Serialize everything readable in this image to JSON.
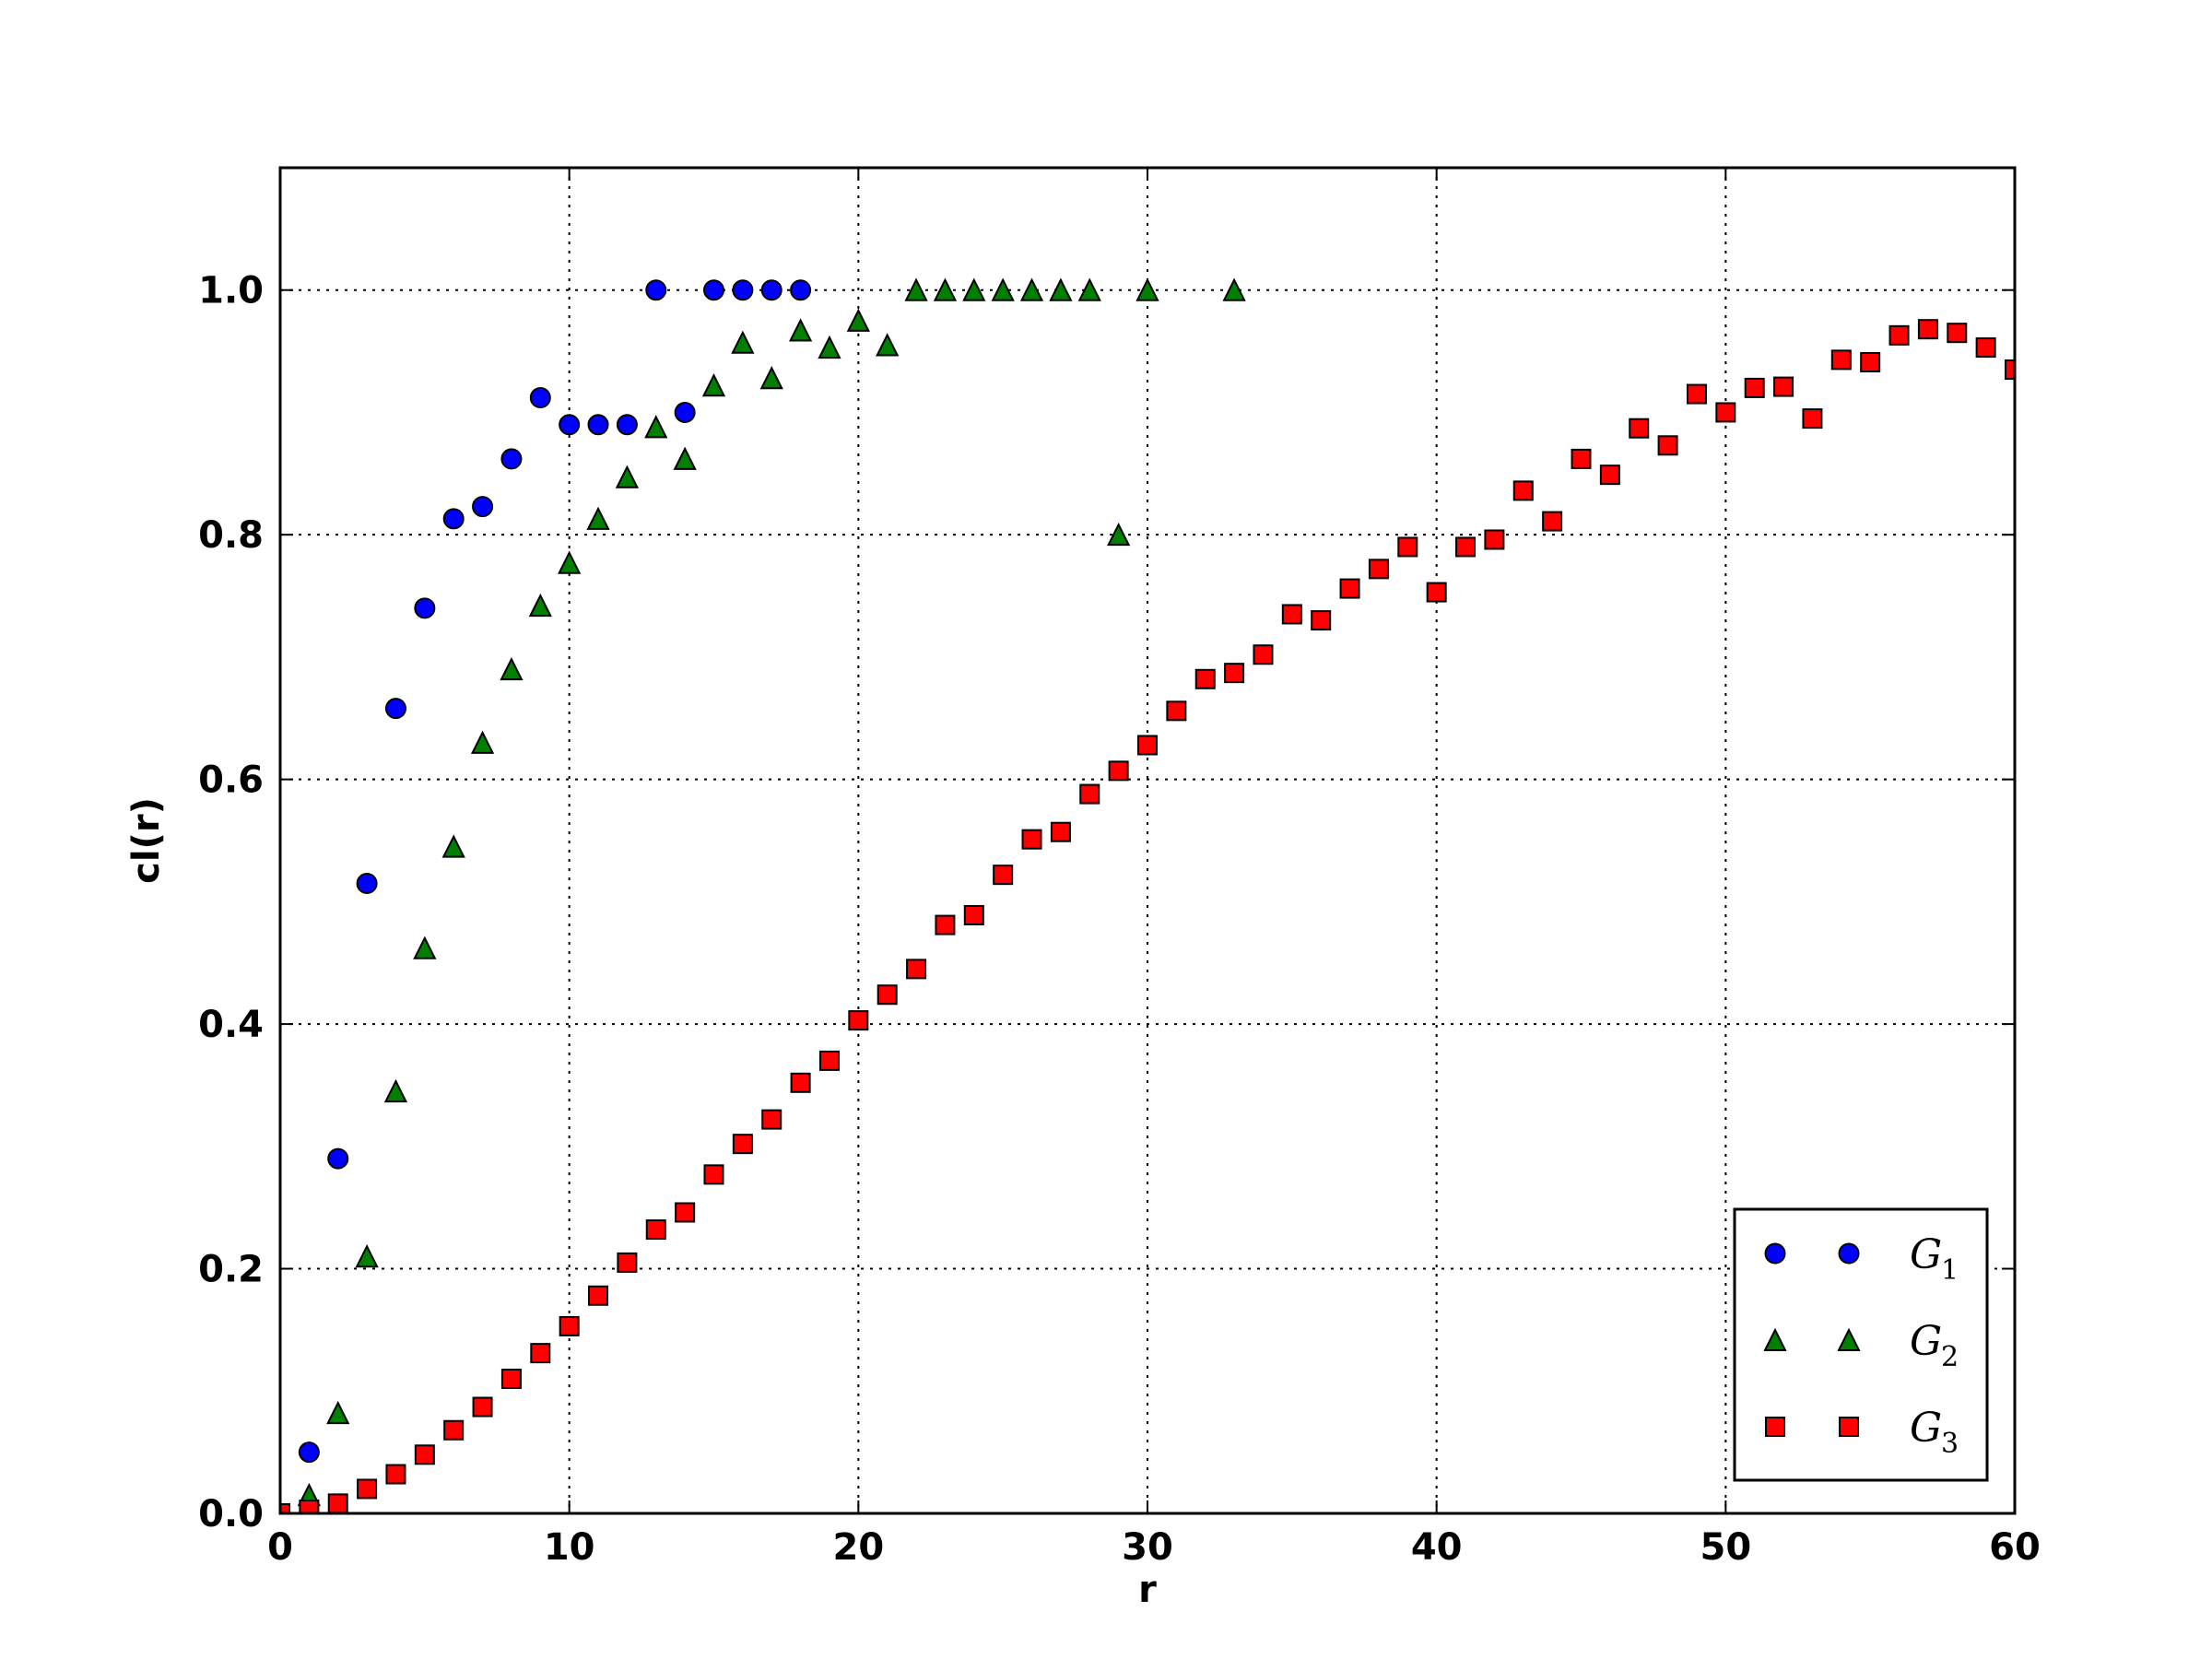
{
  "chart_data": {
    "type": "scatter",
    "xlabel": "r",
    "ylabel": "cl(r)",
    "xlim": [
      0,
      60
    ],
    "ylim": [
      0,
      1.1
    ],
    "xticks": [
      "0",
      "10",
      "20",
      "30",
      "40",
      "50",
      "60"
    ],
    "yticks": [
      "0.0",
      "0.2",
      "0.4",
      "0.6",
      "0.8",
      "1.0"
    ],
    "grid": true,
    "legend_position": "bottom-right",
    "series": [
      {
        "name": "G1",
        "legend_letter": "G",
        "legend_subscript": "1",
        "marker": "circle",
        "color": "#0000ff",
        "x": [
          1,
          2,
          3,
          4,
          5,
          6,
          7,
          8,
          9,
          10,
          11,
          12,
          13,
          14,
          15,
          16,
          17,
          18
        ],
        "y": [
          0.05,
          0.29,
          0.515,
          0.658,
          0.74,
          0.813,
          0.823,
          0.862,
          0.912,
          0.89,
          0.89,
          0.89,
          1.0,
          0.9,
          1.0,
          1.0,
          1.0,
          1.0
        ]
      },
      {
        "name": "G2",
        "legend_letter": "G",
        "legend_subscript": "2",
        "marker": "triangle",
        "color": "#007f00",
        "x": [
          1,
          2,
          3,
          4,
          5,
          6,
          7,
          8,
          9,
          10,
          11,
          12,
          13,
          14,
          15,
          16,
          17,
          18,
          19,
          20,
          21,
          22,
          23,
          24,
          25,
          26,
          27,
          28,
          29,
          30,
          33
        ],
        "y": [
          0.015,
          0.082,
          0.21,
          0.345,
          0.462,
          0.545,
          0.63,
          0.69,
          0.742,
          0.777,
          0.813,
          0.847,
          0.888,
          0.862,
          0.922,
          0.957,
          0.928,
          0.967,
          0.953,
          0.975,
          0.955,
          1.0,
          1.0,
          1.0,
          1.0,
          1.0,
          1.0,
          1.0,
          0.8,
          1.0,
          1.0
        ]
      },
      {
        "name": "G3",
        "legend_letter": "G",
        "legend_subscript": "3",
        "marker": "square",
        "color": "#ff0000",
        "x": [
          0,
          1,
          2,
          3,
          4,
          5,
          6,
          7,
          8,
          9,
          10,
          11,
          12,
          13,
          14,
          15,
          16,
          17,
          18,
          19,
          20,
          21,
          22,
          23,
          24,
          25,
          26,
          27,
          28,
          29,
          30,
          31,
          32,
          33,
          34,
          35,
          36,
          37,
          38,
          39,
          40,
          41,
          42,
          43,
          44,
          45,
          46,
          47,
          48,
          49,
          50,
          51,
          52,
          53,
          54,
          55,
          56,
          57,
          58,
          59,
          60
        ],
        "y": [
          0.0,
          0.003,
          0.008,
          0.02,
          0.032,
          0.048,
          0.068,
          0.087,
          0.11,
          0.131,
          0.153,
          0.178,
          0.205,
          0.232,
          0.246,
          0.277,
          0.302,
          0.322,
          0.352,
          0.37,
          0.403,
          0.424,
          0.445,
          0.481,
          0.489,
          0.522,
          0.551,
          0.557,
          0.588,
          0.607,
          0.628,
          0.656,
          0.682,
          0.687,
          0.702,
          0.735,
          0.73,
          0.756,
          0.772,
          0.79,
          0.753,
          0.79,
          0.796,
          0.836,
          0.811,
          0.862,
          0.849,
          0.887,
          0.873,
          0.915,
          0.9,
          0.92,
          0.921,
          0.895,
          0.943,
          0.941,
          0.963,
          0.968,
          0.965,
          0.953,
          0.935
        ]
      }
    ]
  }
}
